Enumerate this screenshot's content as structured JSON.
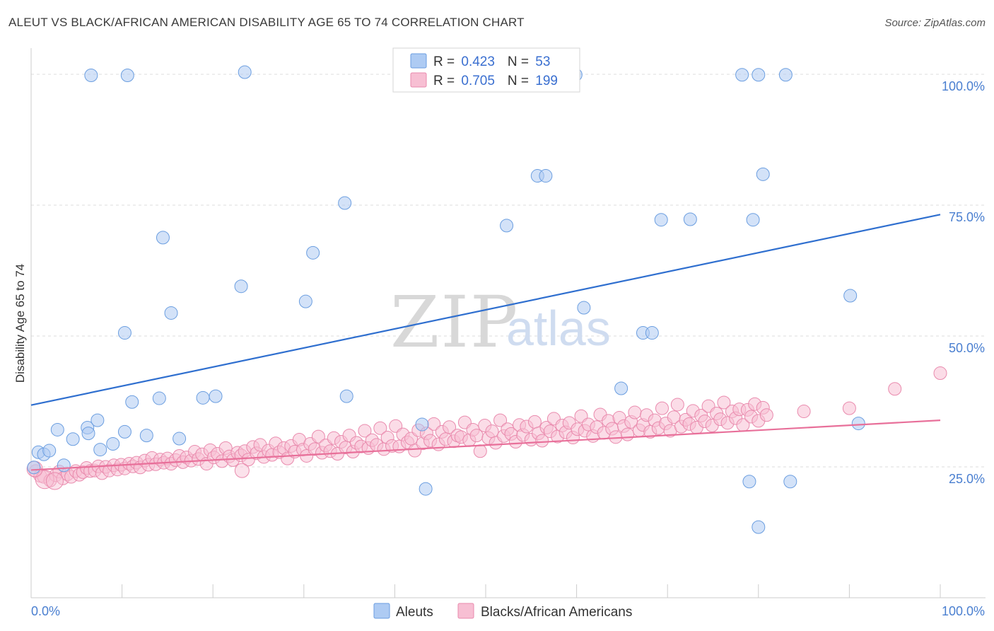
{
  "title": "ALEUT VS BLACK/AFRICAN AMERICAN DISABILITY AGE 65 TO 74 CORRELATION CHART",
  "source": "Source: ZipAtlas.com",
  "watermark": {
    "part1": "ZIP",
    "part2": "atlas"
  },
  "colors": {
    "aleuts_fill": "#aecbf3",
    "aleuts_stroke": "#6b9ee0",
    "aleuts_line": "#2f6fcf",
    "blacks_fill": "#f7bfd3",
    "blacks_stroke": "#e98aad",
    "blacks_line": "#e8709a",
    "axis_label": "#4a7fd0",
    "grid": "#dddddd"
  },
  "legend_box": {
    "rows": [
      {
        "r_label": "R = ",
        "r_value": "0.423",
        "n_label": "N = ",
        "n_value": "53"
      },
      {
        "r_label": "R = ",
        "r_value": "0.705",
        "n_label": "N = ",
        "n_value": "199"
      }
    ]
  },
  "bottom_legend": [
    "Aleuts",
    "Blacks/African Americans"
  ],
  "chart_data": {
    "type": "scatter",
    "ylabel": "Disability Age 65 to 74",
    "xlabel": "",
    "x_tick_labels": [
      "0.0%",
      "100.0%"
    ],
    "y_tick_labels": [
      "25.0%",
      "50.0%",
      "75.0%",
      "100.0%"
    ],
    "xlim": [
      0,
      100
    ],
    "ylim": [
      0,
      105
    ],
    "grid": true,
    "series": [
      {
        "name": "Aleuts",
        "R": 0.423,
        "N": 53,
        "trend": {
          "x": [
            0,
            100
          ],
          "y": [
            36.8,
            73.2
          ]
        },
        "points": [
          [
            0.3,
            24.9
          ],
          [
            0.8,
            27.8
          ],
          [
            1.4,
            27.4
          ],
          [
            2.0,
            28.1
          ],
          [
            2.9,
            32.1
          ],
          [
            3.6,
            25.3
          ],
          [
            4.6,
            30.3
          ],
          [
            6.2,
            32.5
          ],
          [
            6.3,
            31.4
          ],
          [
            7.3,
            33.9
          ],
          [
            7.6,
            28.3
          ],
          [
            9.0,
            29.4
          ],
          [
            10.3,
            31.7
          ],
          [
            11.1,
            37.4
          ],
          [
            12.7,
            31.0
          ],
          [
            14.1,
            38.1
          ],
          [
            16.3,
            30.4
          ],
          [
            18.9,
            38.2
          ],
          [
            20.3,
            38.5
          ],
          [
            23.1,
            59.5
          ],
          [
            15.4,
            54.4
          ],
          [
            14.5,
            68.8
          ],
          [
            10.3,
            50.6
          ],
          [
            6.6,
            99.8
          ],
          [
            10.6,
            99.8
          ],
          [
            23.5,
            100.4
          ],
          [
            30.2,
            56.6
          ],
          [
            31.0,
            65.9
          ],
          [
            34.5,
            75.4
          ],
          [
            34.7,
            38.5
          ],
          [
            43.0,
            33.1
          ],
          [
            43.4,
            20.8
          ],
          [
            52.3,
            71.1
          ],
          [
            55.7,
            80.6
          ],
          [
            56.6,
            80.6
          ],
          [
            59.9,
            99.9
          ],
          [
            58.8,
            100.3
          ],
          [
            60.8,
            55.4
          ],
          [
            64.9,
            40.0
          ],
          [
            67.3,
            50.6
          ],
          [
            68.3,
            50.6
          ],
          [
            69.3,
            72.2
          ],
          [
            72.5,
            72.3
          ],
          [
            79.4,
            72.2
          ],
          [
            78.2,
            99.9
          ],
          [
            80.0,
            99.9
          ],
          [
            83.0,
            99.9
          ],
          [
            80.5,
            80.9
          ],
          [
            79.0,
            22.2
          ],
          [
            83.5,
            22.2
          ],
          [
            91.0,
            33.3
          ],
          [
            90.1,
            57.7
          ],
          [
            80.0,
            13.5
          ]
        ]
      },
      {
        "name": "Blacks/African Americans",
        "R": 0.705,
        "N": 199,
        "trend": {
          "x": [
            0,
            100
          ],
          "y": [
            24.4,
            33.9
          ]
        },
        "points": [
          [
            0.5,
            24.2
          ],
          [
            1.0,
            23.3
          ],
          [
            1.4,
            23.1
          ],
          [
            2.1,
            22.4
          ],
          [
            2.7,
            23.4
          ],
          [
            3.1,
            24.1
          ],
          [
            3.5,
            22.8
          ],
          [
            4.0,
            23.6
          ],
          [
            4.4,
            23.1
          ],
          [
            4.9,
            24.2
          ],
          [
            5.3,
            23.5
          ],
          [
            5.7,
            24.0
          ],
          [
            6.1,
            24.8
          ],
          [
            6.5,
            24.2
          ],
          [
            7.0,
            24.3
          ],
          [
            7.4,
            25.1
          ],
          [
            7.8,
            23.8
          ],
          [
            8.2,
            25.0
          ],
          [
            8.6,
            24.3
          ],
          [
            9.1,
            25.3
          ],
          [
            9.5,
            24.5
          ],
          [
            9.9,
            25.4
          ],
          [
            10.3,
            24.7
          ],
          [
            10.8,
            25.6
          ],
          [
            11.2,
            25.1
          ],
          [
            11.6,
            25.8
          ],
          [
            12.0,
            24.9
          ],
          [
            12.5,
            26.2
          ],
          [
            12.9,
            25.4
          ],
          [
            13.3,
            26.7
          ],
          [
            13.7,
            25.5
          ],
          [
            14.2,
            26.4
          ],
          [
            14.6,
            25.8
          ],
          [
            15.0,
            26.6
          ],
          [
            15.4,
            25.6
          ],
          [
            15.9,
            26.3
          ],
          [
            16.3,
            27.1
          ],
          [
            16.7,
            25.9
          ],
          [
            17.1,
            26.8
          ],
          [
            17.6,
            26.2
          ],
          [
            18.0,
            27.9
          ],
          [
            18.4,
            26.5
          ],
          [
            18.8,
            27.4
          ],
          [
            19.3,
            25.6
          ],
          [
            19.7,
            28.2
          ],
          [
            20.1,
            26.8
          ],
          [
            20.5,
            27.5
          ],
          [
            21.0,
            26.1
          ],
          [
            21.4,
            28.6
          ],
          [
            21.8,
            27.0
          ],
          [
            22.2,
            26.3
          ],
          [
            22.7,
            27.7
          ],
          [
            23.1,
            27.2
          ],
          [
            23.5,
            28.0
          ],
          [
            23.9,
            26.4
          ],
          [
            24.4,
            28.8
          ],
          [
            24.8,
            27.6
          ],
          [
            25.2,
            29.2
          ],
          [
            25.6,
            26.9
          ],
          [
            26.1,
            28.1
          ],
          [
            26.5,
            27.3
          ],
          [
            26.9,
            29.5
          ],
          [
            27.3,
            27.8
          ],
          [
            27.8,
            28.6
          ],
          [
            28.2,
            26.6
          ],
          [
            28.6,
            29.0
          ],
          [
            29.0,
            27.9
          ],
          [
            29.5,
            30.2
          ],
          [
            29.9,
            28.3
          ],
          [
            30.3,
            27.1
          ],
          [
            30.7,
            29.4
          ],
          [
            31.2,
            28.4
          ],
          [
            31.6,
            30.8
          ],
          [
            32.0,
            27.7
          ],
          [
            32.4,
            29.1
          ],
          [
            32.9,
            28.0
          ],
          [
            33.3,
            30.5
          ],
          [
            33.7,
            27.5
          ],
          [
            34.1,
            29.8
          ],
          [
            34.6,
            28.7
          ],
          [
            35.0,
            31.0
          ],
          [
            35.4,
            27.9
          ],
          [
            35.8,
            29.6
          ],
          [
            36.3,
            28.9
          ],
          [
            36.7,
            31.9
          ],
          [
            37.1,
            28.6
          ],
          [
            37.5,
            30.1
          ],
          [
            38.0,
            29.2
          ],
          [
            38.4,
            32.4
          ],
          [
            38.8,
            28.4
          ],
          [
            39.2,
            30.6
          ],
          [
            39.7,
            29.0
          ],
          [
            40.1,
            32.8
          ],
          [
            40.5,
            28.9
          ],
          [
            40.9,
            31.2
          ],
          [
            41.4,
            29.7
          ],
          [
            41.8,
            30.4
          ],
          [
            42.2,
            28.1
          ],
          [
            42.6,
            32.0
          ],
          [
            43.1,
            29.5
          ],
          [
            43.5,
            31.4
          ],
          [
            43.9,
            30.0
          ],
          [
            44.3,
            33.2
          ],
          [
            44.8,
            29.3
          ],
          [
            45.2,
            31.7
          ],
          [
            45.6,
            30.3
          ],
          [
            46.0,
            32.6
          ],
          [
            46.5,
            29.9
          ],
          [
            46.9,
            31.0
          ],
          [
            47.3,
            30.7
          ],
          [
            47.7,
            33.5
          ],
          [
            48.2,
            30.1
          ],
          [
            48.6,
            32.1
          ],
          [
            49.0,
            31.0
          ],
          [
            49.4,
            28.0
          ],
          [
            49.9,
            32.9
          ],
          [
            50.3,
            30.5
          ],
          [
            50.7,
            31.8
          ],
          [
            51.1,
            29.6
          ],
          [
            51.6,
            33.9
          ],
          [
            52.0,
            30.9
          ],
          [
            52.4,
            32.2
          ],
          [
            52.8,
            31.3
          ],
          [
            53.3,
            29.8
          ],
          [
            53.7,
            33.0
          ],
          [
            54.1,
            31.1
          ],
          [
            54.5,
            32.7
          ],
          [
            55.0,
            30.2
          ],
          [
            55.4,
            33.6
          ],
          [
            55.8,
            31.4
          ],
          [
            56.2,
            30.0
          ],
          [
            56.7,
            32.5
          ],
          [
            57.1,
            31.8
          ],
          [
            57.5,
            34.2
          ],
          [
            57.9,
            30.8
          ],
          [
            58.4,
            32.9
          ],
          [
            58.8,
            31.6
          ],
          [
            59.2,
            33.4
          ],
          [
            59.6,
            30.6
          ],
          [
            60.1,
            32.2
          ],
          [
            60.5,
            34.7
          ],
          [
            60.9,
            31.9
          ],
          [
            61.3,
            33.1
          ],
          [
            61.8,
            30.9
          ],
          [
            62.2,
            32.6
          ],
          [
            62.6,
            35.0
          ],
          [
            63.0,
            31.5
          ],
          [
            63.5,
            33.8
          ],
          [
            63.9,
            32.3
          ],
          [
            64.3,
            30.7
          ],
          [
            64.7,
            34.4
          ],
          [
            65.2,
            32.8
          ],
          [
            65.6,
            31.2
          ],
          [
            66.0,
            33.6
          ],
          [
            66.4,
            35.4
          ],
          [
            66.9,
            32.0
          ],
          [
            67.3,
            33.0
          ],
          [
            67.7,
            34.9
          ],
          [
            68.1,
            31.7
          ],
          [
            68.6,
            33.9
          ],
          [
            69.0,
            32.4
          ],
          [
            69.4,
            36.2
          ],
          [
            69.8,
            33.3
          ],
          [
            70.3,
            31.9
          ],
          [
            70.7,
            34.5
          ],
          [
            71.1,
            36.9
          ],
          [
            71.5,
            32.7
          ],
          [
            72.0,
            34.0
          ],
          [
            72.4,
            33.2
          ],
          [
            72.8,
            35.7
          ],
          [
            73.2,
            32.5
          ],
          [
            73.7,
            34.8
          ],
          [
            74.1,
            33.7
          ],
          [
            74.5,
            36.6
          ],
          [
            74.9,
            32.9
          ],
          [
            75.4,
            35.2
          ],
          [
            75.8,
            34.1
          ],
          [
            76.2,
            37.3
          ],
          [
            76.6,
            33.4
          ],
          [
            77.1,
            35.6
          ],
          [
            77.5,
            34.3
          ],
          [
            77.9,
            36.0
          ],
          [
            78.3,
            33.0
          ],
          [
            78.8,
            35.9
          ],
          [
            79.2,
            34.6
          ],
          [
            79.6,
            37.0
          ],
          [
            80.0,
            33.8
          ],
          [
            80.5,
            36.3
          ],
          [
            80.9,
            34.9
          ],
          [
            85.0,
            35.6
          ],
          [
            90.0,
            36.2
          ],
          [
            95.0,
            39.9
          ],
          [
            100.0,
            42.9
          ]
        ]
      }
    ]
  }
}
